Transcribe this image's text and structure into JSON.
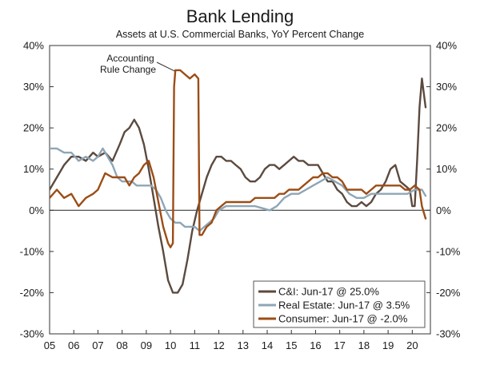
{
  "chart_data": {
    "type": "line",
    "title": "Bank Lending",
    "subtitle": "Assets at U.S. Commercial Banks, YoY Percent Change",
    "ylim": [
      -30,
      40
    ],
    "y_ticks": [
      -30,
      -20,
      -10,
      0,
      10,
      20,
      30,
      40
    ],
    "y_tick_labels": [
      "-30%",
      "-20%",
      "-10%",
      "0%",
      "10%",
      "20%",
      "30%",
      "40%"
    ],
    "x_tick_labels": [
      "05",
      "06",
      "07",
      "08",
      "09",
      "10",
      "11",
      "12",
      "13",
      "14",
      "15",
      "16",
      "17",
      "18",
      "19",
      "20"
    ],
    "x_range": [
      2005.0,
      2020.75
    ],
    "grid": false,
    "legend_position": "bottom-right",
    "annotation": {
      "lines": [
        "Accounting",
        "Rule Change"
      ],
      "x": 2010.2,
      "y": 34
    },
    "series": [
      {
        "name": "C&I: Jun-17 @ 25.0%",
        "color": "#5b4a3f",
        "points": [
          [
            2005.0,
            5
          ],
          [
            2005.3,
            8
          ],
          [
            2005.6,
            11
          ],
          [
            2005.9,
            13
          ],
          [
            2006.2,
            13
          ],
          [
            2006.5,
            12
          ],
          [
            2006.8,
            14
          ],
          [
            2007.0,
            13
          ],
          [
            2007.3,
            14
          ],
          [
            2007.6,
            12
          ],
          [
            2007.9,
            16
          ],
          [
            2008.1,
            19
          ],
          [
            2008.3,
            20
          ],
          [
            2008.5,
            22
          ],
          [
            2008.7,
            20
          ],
          [
            2008.9,
            16
          ],
          [
            2009.1,
            10
          ],
          [
            2009.3,
            3
          ],
          [
            2009.5,
            -4
          ],
          [
            2009.7,
            -10
          ],
          [
            2009.9,
            -17
          ],
          [
            2010.1,
            -20
          ],
          [
            2010.3,
            -20
          ],
          [
            2010.5,
            -18
          ],
          [
            2010.7,
            -12
          ],
          [
            2010.9,
            -5
          ],
          [
            2011.1,
            0
          ],
          [
            2011.3,
            4
          ],
          [
            2011.5,
            8
          ],
          [
            2011.7,
            11
          ],
          [
            2011.9,
            13
          ],
          [
            2012.1,
            13
          ],
          [
            2012.3,
            12
          ],
          [
            2012.5,
            12
          ],
          [
            2012.7,
            11
          ],
          [
            2012.9,
            10
          ],
          [
            2013.1,
            8
          ],
          [
            2013.3,
            7
          ],
          [
            2013.5,
            7
          ],
          [
            2013.7,
            8
          ],
          [
            2013.9,
            10
          ],
          [
            2014.1,
            11
          ],
          [
            2014.3,
            11
          ],
          [
            2014.5,
            10
          ],
          [
            2014.7,
            11
          ],
          [
            2014.9,
            12
          ],
          [
            2015.1,
            13
          ],
          [
            2015.3,
            12
          ],
          [
            2015.5,
            12
          ],
          [
            2015.7,
            11
          ],
          [
            2015.9,
            11
          ],
          [
            2016.1,
            11
          ],
          [
            2016.3,
            9
          ],
          [
            2016.5,
            7
          ],
          [
            2016.7,
            7
          ],
          [
            2016.9,
            5
          ],
          [
            2017.1,
            4
          ],
          [
            2017.3,
            2
          ],
          [
            2017.5,
            1
          ],
          [
            2017.7,
            1
          ],
          [
            2017.9,
            2
          ],
          [
            2018.1,
            1
          ],
          [
            2018.3,
            2
          ],
          [
            2018.5,
            4
          ],
          [
            2018.7,
            5
          ],
          [
            2018.9,
            7
          ],
          [
            2019.1,
            10
          ],
          [
            2019.3,
            11
          ],
          [
            2019.5,
            7
          ],
          [
            2019.7,
            6
          ],
          [
            2019.9,
            5
          ],
          [
            2020.0,
            1
          ],
          [
            2020.1,
            1
          ],
          [
            2020.2,
            12
          ],
          [
            2020.3,
            25
          ],
          [
            2020.4,
            32
          ],
          [
            2020.55,
            25
          ]
        ]
      },
      {
        "name": "Real Estate: Jun-17 @ 3.5%",
        "color": "#8ea6b6",
        "points": [
          [
            2005.0,
            15
          ],
          [
            2005.3,
            15
          ],
          [
            2005.6,
            14
          ],
          [
            2005.9,
            14
          ],
          [
            2006.2,
            12
          ],
          [
            2006.5,
            13
          ],
          [
            2006.8,
            12
          ],
          [
            2007.0,
            13
          ],
          [
            2007.2,
            15
          ],
          [
            2007.4,
            13
          ],
          [
            2007.6,
            11
          ],
          [
            2007.8,
            8
          ],
          [
            2008.0,
            7
          ],
          [
            2008.2,
            7
          ],
          [
            2008.4,
            7
          ],
          [
            2008.6,
            6
          ],
          [
            2008.8,
            6
          ],
          [
            2009.0,
            6
          ],
          [
            2009.2,
            6
          ],
          [
            2009.4,
            5
          ],
          [
            2009.6,
            3
          ],
          [
            2009.8,
            0
          ],
          [
            2010.0,
            -2
          ],
          [
            2010.2,
            -3
          ],
          [
            2010.4,
            -3
          ],
          [
            2010.6,
            -4
          ],
          [
            2010.8,
            -4
          ],
          [
            2011.0,
            -4
          ],
          [
            2011.2,
            -5
          ],
          [
            2011.4,
            -4
          ],
          [
            2011.6,
            -3
          ],
          [
            2011.8,
            -2
          ],
          [
            2012.0,
            0
          ],
          [
            2012.3,
            1
          ],
          [
            2012.6,
            1
          ],
          [
            2012.9,
            1
          ],
          [
            2013.2,
            1
          ],
          [
            2013.5,
            1
          ],
          [
            2013.8,
            0.5
          ],
          [
            2014.1,
            0
          ],
          [
            2014.4,
            1
          ],
          [
            2014.7,
            3
          ],
          [
            2015.0,
            4
          ],
          [
            2015.3,
            4
          ],
          [
            2015.6,
            5
          ],
          [
            2015.9,
            6
          ],
          [
            2016.2,
            7
          ],
          [
            2016.5,
            8
          ],
          [
            2016.8,
            7
          ],
          [
            2017.1,
            6
          ],
          [
            2017.4,
            4
          ],
          [
            2017.7,
            3
          ],
          [
            2018.0,
            3
          ],
          [
            2018.3,
            4
          ],
          [
            2018.6,
            4
          ],
          [
            2018.9,
            4
          ],
          [
            2019.2,
            4
          ],
          [
            2019.5,
            4
          ],
          [
            2019.8,
            4
          ],
          [
            2020.1,
            5
          ],
          [
            2020.4,
            5
          ],
          [
            2020.55,
            3.5
          ]
        ]
      },
      {
        "name": "Consumer: Jun-17 @ -2.0%",
        "color": "#9c4d16",
        "points": [
          [
            2005.0,
            3
          ],
          [
            2005.3,
            5
          ],
          [
            2005.6,
            3
          ],
          [
            2005.9,
            4
          ],
          [
            2006.2,
            1
          ],
          [
            2006.5,
            3
          ],
          [
            2006.8,
            4
          ],
          [
            2007.0,
            5
          ],
          [
            2007.3,
            9
          ],
          [
            2007.6,
            8
          ],
          [
            2007.9,
            8
          ],
          [
            2008.1,
            8
          ],
          [
            2008.3,
            6
          ],
          [
            2008.5,
            8
          ],
          [
            2008.7,
            9
          ],
          [
            2008.9,
            11
          ],
          [
            2009.1,
            12
          ],
          [
            2009.3,
            8
          ],
          [
            2009.5,
            2
          ],
          [
            2009.7,
            -4
          ],
          [
            2009.9,
            -8
          ],
          [
            2010.0,
            -9
          ],
          [
            2010.1,
            -8
          ],
          [
            2010.15,
            30
          ],
          [
            2010.2,
            34
          ],
          [
            2010.4,
            34
          ],
          [
            2010.6,
            33
          ],
          [
            2010.8,
            32
          ],
          [
            2011.0,
            33
          ],
          [
            2011.15,
            32
          ],
          [
            2011.2,
            -6
          ],
          [
            2011.3,
            -6
          ],
          [
            2011.5,
            -4
          ],
          [
            2011.7,
            -3
          ],
          [
            2011.9,
            0
          ],
          [
            2012.1,
            1
          ],
          [
            2012.3,
            2
          ],
          [
            2012.5,
            2
          ],
          [
            2012.7,
            2
          ],
          [
            2012.9,
            2
          ],
          [
            2013.1,
            2
          ],
          [
            2013.3,
            2
          ],
          [
            2013.5,
            3
          ],
          [
            2013.7,
            3
          ],
          [
            2013.9,
            3
          ],
          [
            2014.1,
            3
          ],
          [
            2014.3,
            3
          ],
          [
            2014.5,
            4
          ],
          [
            2014.7,
            4
          ],
          [
            2014.9,
            5
          ],
          [
            2015.1,
            5
          ],
          [
            2015.3,
            5
          ],
          [
            2015.5,
            6
          ],
          [
            2015.7,
            7
          ],
          [
            2015.9,
            8
          ],
          [
            2016.1,
            8
          ],
          [
            2016.3,
            9
          ],
          [
            2016.5,
            9
          ],
          [
            2016.7,
            8
          ],
          [
            2016.9,
            8
          ],
          [
            2017.1,
            7
          ],
          [
            2017.3,
            5
          ],
          [
            2017.5,
            5
          ],
          [
            2017.7,
            5
          ],
          [
            2017.9,
            5
          ],
          [
            2018.1,
            4
          ],
          [
            2018.3,
            5
          ],
          [
            2018.5,
            6
          ],
          [
            2018.7,
            6
          ],
          [
            2018.9,
            6
          ],
          [
            2019.1,
            6
          ],
          [
            2019.3,
            6
          ],
          [
            2019.5,
            6
          ],
          [
            2019.7,
            5
          ],
          [
            2019.9,
            5
          ],
          [
            2020.1,
            6
          ],
          [
            2020.3,
            5
          ],
          [
            2020.4,
            1
          ],
          [
            2020.55,
            -2
          ]
        ]
      }
    ]
  }
}
